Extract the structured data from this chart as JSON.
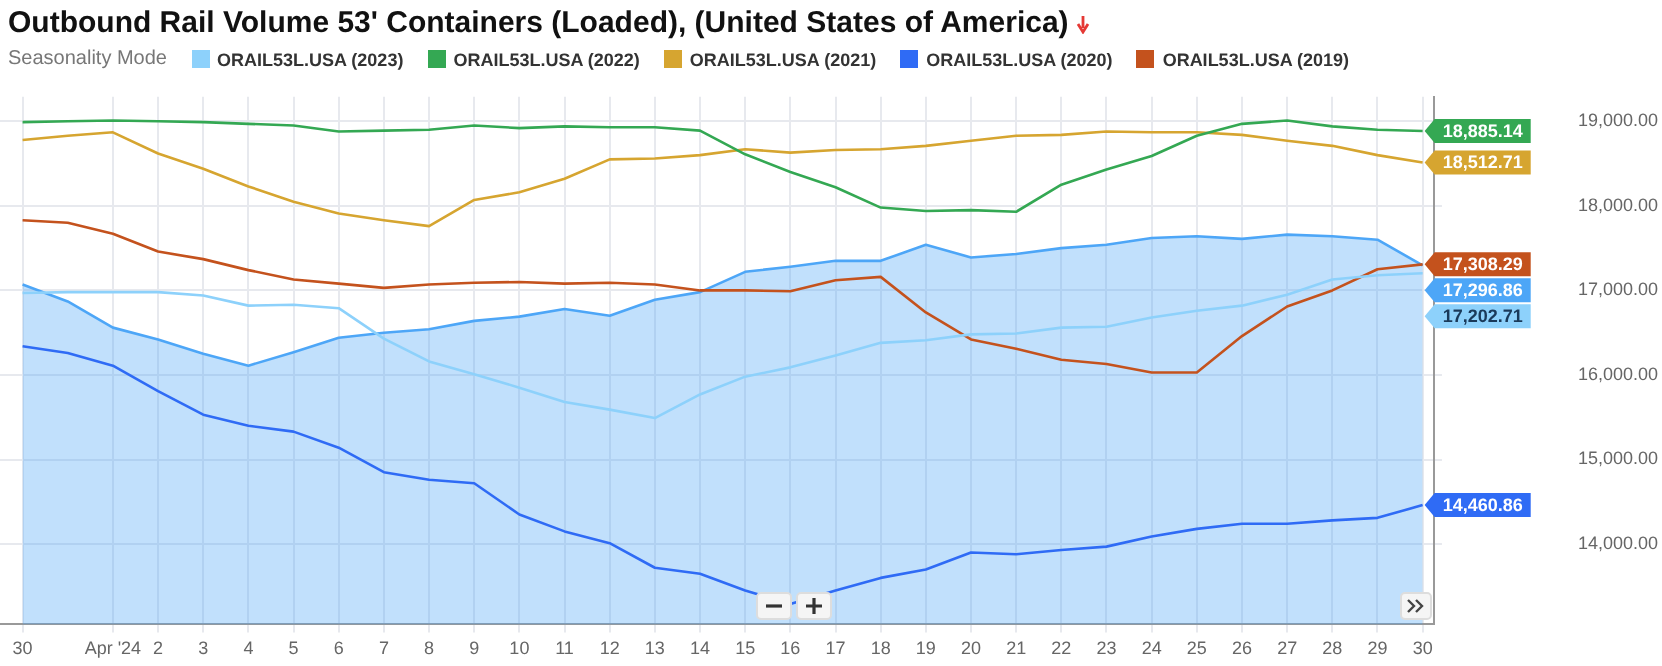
{
  "chart_data": {
    "type": "line",
    "title": "Outbound Rail Volume 53' Containers (Loaded), (United States of America)",
    "legend_title": "Seasonality Mode",
    "legend": "top",
    "grid": true,
    "x": [
      "2024-03-30",
      "2024-03-31",
      "2024-04-01",
      "2024-04-02",
      "2024-04-03",
      "2024-04-04",
      "2024-04-05",
      "2024-04-06",
      "2024-04-07",
      "2024-04-08",
      "2024-04-09",
      "2024-04-10",
      "2024-04-11",
      "2024-04-12",
      "2024-04-13",
      "2024-04-14",
      "2024-04-15",
      "2024-04-16",
      "2024-04-17",
      "2024-04-18",
      "2024-04-19",
      "2024-04-20",
      "2024-04-21",
      "2024-04-22",
      "2024-04-23",
      "2024-04-24",
      "2024-04-25",
      "2024-04-26",
      "2024-04-27",
      "2024-04-28",
      "2024-04-29",
      "2024-04-30"
    ],
    "xlim": [
      "2024-03-29T12:00",
      "2024-04-30T06:00"
    ],
    "xticks": [
      {
        "value": "2024-03-30",
        "label": "30"
      },
      {
        "value": "2024-04-01",
        "label": "Apr '24"
      },
      {
        "value": "2024-04-02",
        "label": "2"
      },
      {
        "value": "2024-04-03",
        "label": "3"
      },
      {
        "value": "2024-04-04",
        "label": "4"
      },
      {
        "value": "2024-04-05",
        "label": "5"
      },
      {
        "value": "2024-04-06",
        "label": "6"
      },
      {
        "value": "2024-04-07",
        "label": "7"
      },
      {
        "value": "2024-04-08",
        "label": "8"
      },
      {
        "value": "2024-04-09",
        "label": "9"
      },
      {
        "value": "2024-04-10",
        "label": "10"
      },
      {
        "value": "2024-04-11",
        "label": "11"
      },
      {
        "value": "2024-04-12",
        "label": "12"
      },
      {
        "value": "2024-04-13",
        "label": "13"
      },
      {
        "value": "2024-04-14",
        "label": "14"
      },
      {
        "value": "2024-04-15",
        "label": "15"
      },
      {
        "value": "2024-04-16",
        "label": "16"
      },
      {
        "value": "2024-04-17",
        "label": "17"
      },
      {
        "value": "2024-04-18",
        "label": "18"
      },
      {
        "value": "2024-04-19",
        "label": "19"
      },
      {
        "value": "2024-04-20",
        "label": "20"
      },
      {
        "value": "2024-04-21",
        "label": "21"
      },
      {
        "value": "2024-04-22",
        "label": "22"
      },
      {
        "value": "2024-04-23",
        "label": "23"
      },
      {
        "value": "2024-04-24",
        "label": "24"
      },
      {
        "value": "2024-04-25",
        "label": "25"
      },
      {
        "value": "2024-04-26",
        "label": "26"
      },
      {
        "value": "2024-04-27",
        "label": "27"
      },
      {
        "value": "2024-04-28",
        "label": "28"
      },
      {
        "value": "2024-04-29",
        "label": "29"
      },
      {
        "value": "2024-04-30",
        "label": "30"
      }
    ],
    "ylim": [
      13050,
      19290
    ],
    "yticks": [
      {
        "value": 14000,
        "label": "14,000.00"
      },
      {
        "value": 15000,
        "label": "15,000.00"
      },
      {
        "value": 16000,
        "label": "16,000.00"
      },
      {
        "value": 17000,
        "label": "17,000.00"
      },
      {
        "value": 18000,
        "label": "18,000.00"
      },
      {
        "value": 19000,
        "label": "19,000.00"
      }
    ],
    "series": [
      {
        "type": "area",
        "color": "#4da6f7",
        "values": [
          17070,
          16870,
          16560,
          16420,
          16250,
          16110,
          16270,
          16440,
          16500,
          16540,
          16640,
          16690,
          16780,
          16700,
          16890,
          16980,
          17220,
          17280,
          17350,
          17350,
          17540,
          17390,
          17430,
          17500,
          17540,
          17620,
          17640,
          17610,
          17660,
          17640,
          17600,
          17296.86
        ],
        "value_labels": [
          null,
          null,
          null,
          null,
          null,
          null,
          null,
          null,
          null,
          null,
          null,
          null,
          null,
          null,
          null,
          null,
          null,
          null,
          null,
          null,
          null,
          null,
          null,
          null,
          null,
          null,
          null,
          null,
          null,
          null,
          null,
          "17,296.86"
        ]
      },
      {
        "name": "ORAIL53L.USA (2023)",
        "color": "#8dd1fb",
        "values": [
          16970,
          16980,
          16980,
          16980,
          16940,
          16820,
          16830,
          16790,
          16430,
          16160,
          16010,
          15850,
          15680,
          15590,
          15490,
          15770,
          15980,
          16090,
          16230,
          16380,
          16410,
          16480,
          16490,
          16560,
          16570,
          16680,
          16760,
          16820,
          16950,
          17130,
          17180,
          17202.71
        ],
        "value_labels": [
          null,
          null,
          null,
          null,
          null,
          null,
          null,
          null,
          null,
          null,
          null,
          null,
          null,
          null,
          null,
          null,
          null,
          null,
          null,
          null,
          null,
          null,
          null,
          null,
          null,
          null,
          null,
          null,
          null,
          null,
          null,
          "17,202.71"
        ]
      },
      {
        "name": "ORAIL53L.USA (2022)",
        "color": "#34a853",
        "values": [
          18990,
          19000,
          19010,
          19000,
          18990,
          18970,
          18950,
          18880,
          18890,
          18900,
          18950,
          18920,
          18940,
          18930,
          18930,
          18890,
          18610,
          18400,
          18220,
          17980,
          17940,
          17950,
          17930,
          18250,
          18430,
          18590,
          18830,
          18970,
          19010,
          18940,
          18900,
          18885.14
        ],
        "value_labels": [
          null,
          null,
          null,
          null,
          null,
          null,
          null,
          null,
          null,
          null,
          null,
          null,
          null,
          null,
          null,
          null,
          null,
          null,
          null,
          null,
          null,
          null,
          null,
          null,
          null,
          null,
          null,
          null,
          null,
          null,
          null,
          "18,885.14"
        ]
      },
      {
        "name": "ORAIL53L.USA (2021)",
        "color": "#d6a530",
        "values": [
          18780,
          18830,
          18870,
          18620,
          18440,
          18230,
          18050,
          17910,
          17830,
          17760,
          18070,
          18160,
          18320,
          18550,
          18560,
          18600,
          18670,
          18630,
          18660,
          18670,
          18710,
          18770,
          18830,
          18840,
          18880,
          18870,
          18870,
          18840,
          18770,
          18710,
          18600,
          18512.71
        ],
        "value_labels": [
          null,
          null,
          null,
          null,
          null,
          null,
          null,
          null,
          null,
          null,
          null,
          null,
          null,
          null,
          null,
          null,
          null,
          null,
          null,
          null,
          null,
          null,
          null,
          null,
          null,
          null,
          null,
          null,
          null,
          null,
          null,
          "18,512.71"
        ]
      },
      {
        "name": "ORAIL53L.USA (2020)",
        "color": "#2f6bf5",
        "values": [
          16340,
          16260,
          16110,
          15810,
          15530,
          15400,
          15330,
          15140,
          14850,
          14760,
          14720,
          14350,
          14150,
          14010,
          13720,
          13650,
          13450,
          13290,
          13450,
          13600,
          13700,
          13900,
          13880,
          13930,
          13970,
          14090,
          14180,
          14240,
          14240,
          14280,
          14310,
          14460.86
        ],
        "value_labels": [
          null,
          null,
          null,
          null,
          null,
          null,
          null,
          null,
          null,
          null,
          null,
          null,
          null,
          null,
          null,
          null,
          null,
          null,
          null,
          null,
          null,
          null,
          null,
          null,
          null,
          null,
          null,
          null,
          null,
          null,
          null,
          "14,460.86"
        ]
      },
      {
        "name": "ORAIL53L.USA (2019)",
        "color": "#c4521d",
        "values": [
          17830,
          17800,
          17670,
          17460,
          17370,
          17240,
          17130,
          17080,
          17030,
          17070,
          17090,
          17100,
          17080,
          17090,
          17070,
          17000,
          17000,
          16990,
          17120,
          17160,
          16740,
          16420,
          16310,
          16180,
          16130,
          16030,
          16030,
          16460,
          16810,
          17000,
          17250,
          17308.29
        ],
        "value_labels": [
          null,
          null,
          null,
          null,
          null,
          null,
          null,
          null,
          null,
          null,
          null,
          null,
          null,
          null,
          null,
          null,
          null,
          null,
          null,
          null,
          null,
          null,
          null,
          null,
          null,
          null,
          null,
          null,
          null,
          null,
          null,
          "17,308.29"
        ]
      }
    ]
  }
}
